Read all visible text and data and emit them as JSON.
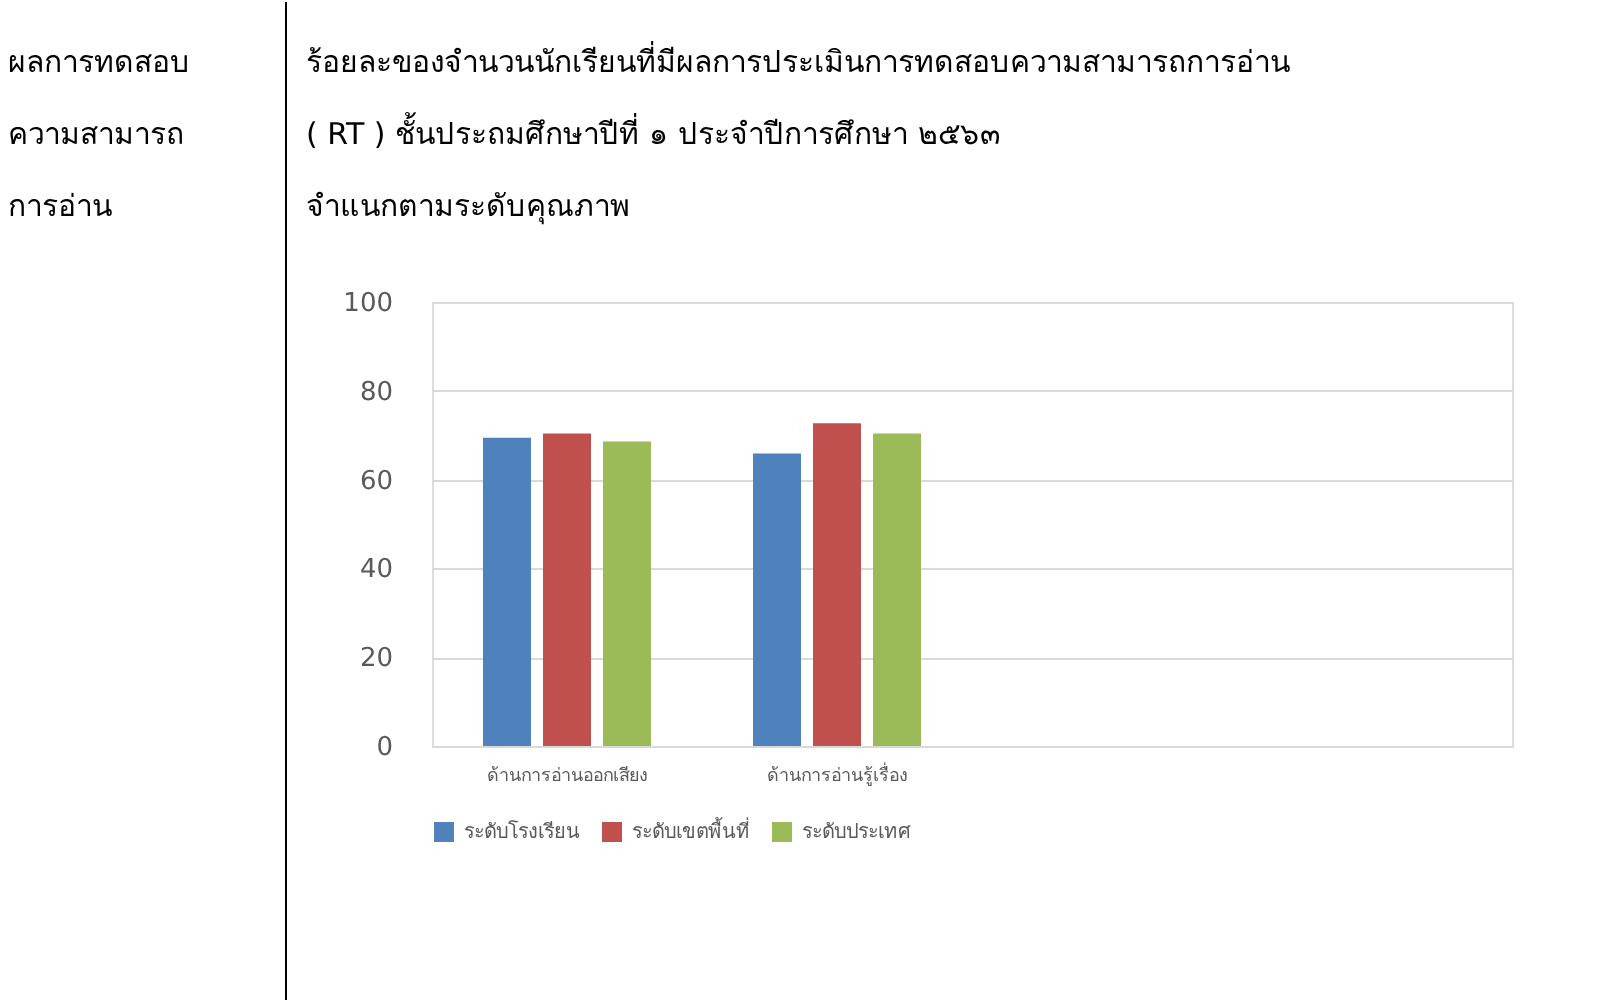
{
  "chart_data": {
    "type": "bar",
    "title": "ร้อยละของจำนวนนักเรียนที่มีผลการประเมินการทดสอบความสามารถการอ่าน ( RT ) ชั้นประถมศึกษาปีที่ ๑ ประจำปีการศึกษา ๒๕๖๓",
    "subtitle": "จำแนกตามระดับคุณภาพ",
    "annotations": [
      "ผลการทดสอบ",
      "ความสามารถ",
      "การอ่าน"
    ],
    "categories": [
      "ด้านการอ่านออกเสียง",
      "ด้านการอ่านรู้เรื่อง",
      null,
      null
    ],
    "series": [
      {
        "name": "ระดับโรงเรียน",
        "color": "#4f81bd",
        "values": [
          69.4,
          65.9,
          null,
          null
        ]
      },
      {
        "name": "ระดับเขตพื้นที่",
        "color": "#c0504d",
        "values": [
          70.4,
          72.7,
          null,
          null
        ]
      },
      {
        "name": "ระดับประเทศ",
        "color": "#9bbb59",
        "values": [
          68.6,
          70.4,
          null,
          null
        ]
      }
    ],
    "ylim": [
      0,
      100
    ],
    "yticks": [
      0,
      20,
      40,
      60,
      80,
      100
    ],
    "grid": "y",
    "legend": "bottom"
  }
}
